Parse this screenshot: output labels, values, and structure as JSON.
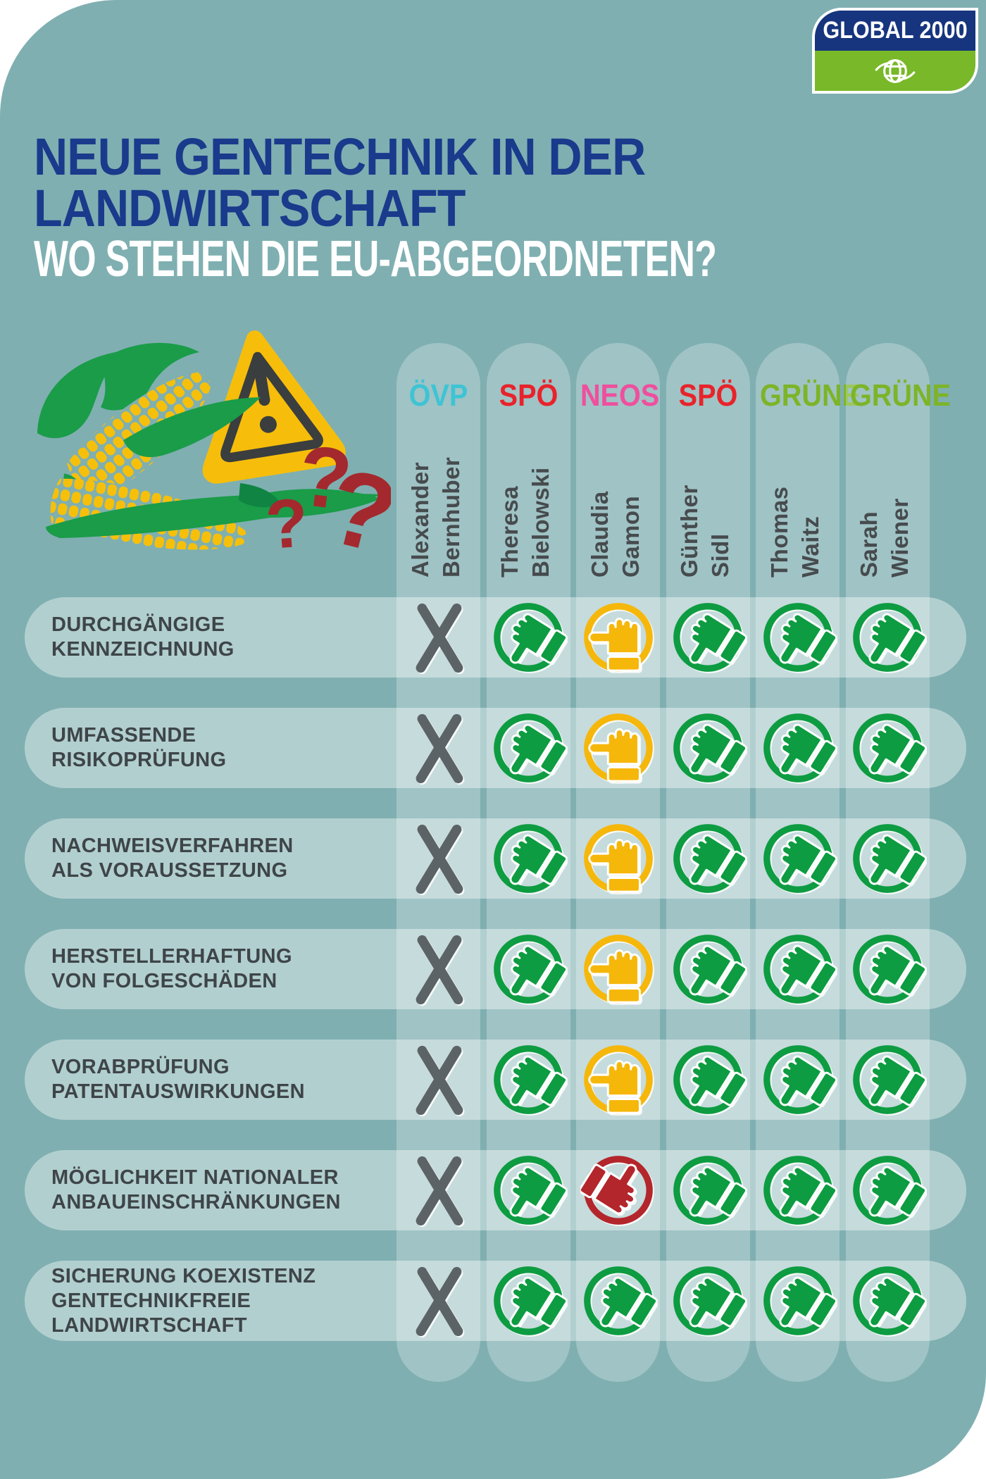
{
  "logo": {
    "brand": "GLOBAL 2000"
  },
  "header": {
    "title_line1": "NEUE GENTECHNIK IN DER",
    "title_line2": "LANDWIRTSCHAFT",
    "subtitle": "WO STEHEN DIE EU-ABGEORDNETEN?"
  },
  "palette": {
    "background_teal": "#7FAFB1",
    "title_blue": "#1A3A8C",
    "logo_blue": "#16357E",
    "logo_green": "#79B829",
    "cross_gray": "#5C6366",
    "thumb_green": "#0D9C41",
    "thumb_yellow": "#F6B70B",
    "thumb_red": "#B3262B",
    "question_red": "#A3292E",
    "corn_yellow": "#F6C00A",
    "leaf_green": "#1A9C49",
    "triangle_yellow": "#F6BE0B",
    "triangle_dark": "#3B3E3E",
    "label_gray": "#3E4548"
  },
  "columns": [
    {
      "party": "ÖVP",
      "party_color": "#3EC4D4",
      "first_name": "Alexander",
      "last_name": "Bernhuber"
    },
    {
      "party": "SPÖ",
      "party_color": "#E8232B",
      "first_name": "Theresa",
      "last_name": "Bielowski"
    },
    {
      "party": "NEOS",
      "party_color": "#EF4F9E",
      "first_name": "Claudia",
      "last_name": "Gamon"
    },
    {
      "party": "SPÖ",
      "party_color": "#E8232B",
      "first_name": "Günther",
      "last_name": "Sidl"
    },
    {
      "party": "GRÜNE",
      "party_color": "#7DB428",
      "first_name": "Thomas",
      "last_name": "Waitz"
    },
    {
      "party": "GRÜNE",
      "party_color": "#7DB428",
      "first_name": "Sarah",
      "last_name": "Wiener"
    }
  ],
  "rows": [
    {
      "label_lines": [
        "DURCHGÄNGIGE",
        "KENNZEICHNUNG"
      ],
      "votes": [
        "cross",
        "up",
        "neutral",
        "up",
        "up",
        "up"
      ]
    },
    {
      "label_lines": [
        "UMFASSENDE",
        "RISIKOPRÜFUNG"
      ],
      "votes": [
        "cross",
        "up",
        "neutral",
        "up",
        "up",
        "up"
      ]
    },
    {
      "label_lines": [
        "NACHWEISVERFAHREN",
        "ALS VORAUSSETZUNG"
      ],
      "votes": [
        "cross",
        "up",
        "neutral",
        "up",
        "up",
        "up"
      ]
    },
    {
      "label_lines": [
        "HERSTELLERHAFTUNG",
        "VON FOLGESCHÄDEN"
      ],
      "votes": [
        "cross",
        "up",
        "neutral",
        "up",
        "up",
        "up"
      ]
    },
    {
      "label_lines": [
        "VORABPRÜFUNG",
        "PATENTAUSWIRKUNGEN"
      ],
      "votes": [
        "cross",
        "up",
        "neutral",
        "up",
        "up",
        "up"
      ]
    },
    {
      "label_lines": [
        "MÖGLICHKEIT NATIONALER",
        "ANBAUEINSCHRÄNKUNGEN"
      ],
      "votes": [
        "cross",
        "up",
        "down",
        "up",
        "up",
        "up"
      ]
    },
    {
      "label_lines": [
        "SICHERUNG KOEXISTENZ",
        "GENTECHNIKFREIE",
        "LANDWIRTSCHAFT"
      ],
      "votes": [
        "cross",
        "up",
        "up",
        "up",
        "up",
        "up"
      ]
    }
  ],
  "vote_legend": {
    "cross": "keine Position (graues X)",
    "up": "dafür (grüner Daumen hoch)",
    "neutral": "unentschieden (gelber Daumen seitlich)",
    "down": "dagegen (roter Daumen runter)"
  },
  "chart_data": {
    "type": "table",
    "title": "NEUE GENTECHNIK IN DER LANDWIRTSCHAFT",
    "subtitle": "WO STEHEN DIE EU-ABGEORDNETEN?",
    "columns": [
      {
        "party": "ÖVP",
        "name": "Alexander Bernhuber"
      },
      {
        "party": "SPÖ",
        "name": "Theresa Bielowski"
      },
      {
        "party": "NEOS",
        "name": "Claudia Gamon"
      },
      {
        "party": "SPÖ",
        "name": "Günther Sidl"
      },
      {
        "party": "GRÜNE",
        "name": "Thomas Waitz"
      },
      {
        "party": "GRÜNE",
        "name": "Sarah Wiener"
      }
    ],
    "rows": [
      {
        "criterion": "Durchgängige Kennzeichnung",
        "values": [
          "no_position",
          "approve",
          "neutral",
          "approve",
          "approve",
          "approve"
        ]
      },
      {
        "criterion": "Umfassende Risikoprüfung",
        "values": [
          "no_position",
          "approve",
          "neutral",
          "approve",
          "approve",
          "approve"
        ]
      },
      {
        "criterion": "Nachweisverfahren als Voraussetzung",
        "values": [
          "no_position",
          "approve",
          "neutral",
          "approve",
          "approve",
          "approve"
        ]
      },
      {
        "criterion": "Herstellerhaftung von Folgeschäden",
        "values": [
          "no_position",
          "approve",
          "neutral",
          "approve",
          "approve",
          "approve"
        ]
      },
      {
        "criterion": "Vorabprüfung Patentauswirkungen",
        "values": [
          "no_position",
          "approve",
          "neutral",
          "approve",
          "approve",
          "approve"
        ]
      },
      {
        "criterion": "Möglichkeit nationaler Anbaueinschränkungen",
        "values": [
          "no_position",
          "approve",
          "reject",
          "approve",
          "approve",
          "approve"
        ]
      },
      {
        "criterion": "Sicherung Koexistenz gentechnikfreie Landwirtschaft",
        "values": [
          "no_position",
          "approve",
          "approve",
          "approve",
          "approve",
          "approve"
        ]
      }
    ],
    "value_legend": {
      "approve": "green thumb up",
      "neutral": "yellow thumb sideways",
      "reject": "red thumb down",
      "no_position": "gray cross"
    }
  }
}
